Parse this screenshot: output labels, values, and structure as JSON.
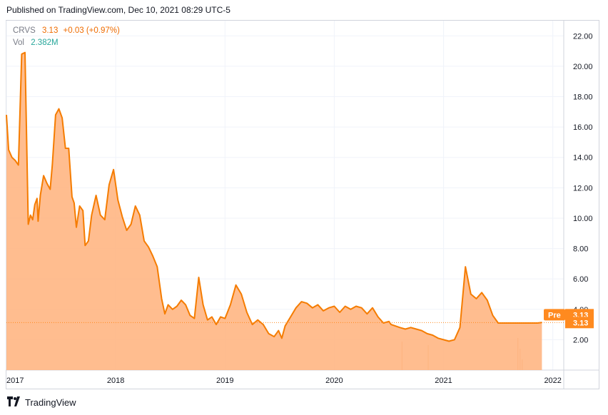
{
  "header": {
    "published": "Published on TradingView.com, Dec 10, 2021 08:29 UTC-5"
  },
  "legend": {
    "symbol": "CRVS",
    "price": "3.13",
    "change": "+0.03 (+0.97%)",
    "vol_label": "Vol",
    "vol_value": "2.382M"
  },
  "footer": {
    "brand": "TradingView"
  },
  "colors": {
    "line": "#f57c00",
    "fill": "#ffb683",
    "price_label": "#ff8a1f",
    "volume": "#f4a877",
    "grid": "#f0f3fa"
  },
  "badges": {
    "pre_label": "Pre",
    "pre_value": "3.13",
    "last_value": "3.13"
  },
  "chart_data": {
    "type": "area",
    "x_unit": "years",
    "ylim": [
      0,
      23
    ],
    "xlim": [
      2017,
      2022.1
    ],
    "y_ticks": [
      "2.00",
      "4.00",
      "6.00",
      "8.00",
      "10.00",
      "12.00",
      "14.00",
      "16.00",
      "18.00",
      "20.00",
      "22.00"
    ],
    "x_ticks": [
      "2017",
      "2018",
      "2019",
      "2020",
      "2021",
      "2022"
    ],
    "last_price": 3.13,
    "series": [
      {
        "x": [
          2017.0,
          2017.02,
          2017.05,
          2017.08,
          2017.11,
          2017.14,
          2017.17,
          2017.2,
          2017.22,
          2017.24,
          2017.26,
          2017.28,
          2017.29,
          2017.31,
          2017.34,
          2017.37,
          2017.4,
          2017.42,
          2017.45,
          2017.48,
          2017.51,
          2017.54,
          2017.57,
          2017.6,
          2017.62,
          2017.64,
          2017.67,
          2017.7,
          2017.72,
          2017.75,
          2017.78,
          2017.82,
          2017.86,
          2017.9,
          2017.94,
          2017.98,
          2018.02,
          2018.06,
          2018.1,
          2018.14,
          2018.18,
          2018.22,
          2018.26,
          2018.3,
          2018.34,
          2018.38,
          2018.42,
          2018.45,
          2018.48,
          2018.52,
          2018.56,
          2018.6,
          2018.64,
          2018.68,
          2018.72,
          2018.76,
          2018.8,
          2018.84,
          2018.88,
          2018.92,
          2018.96,
          2019.0,
          2019.05,
          2019.1,
          2019.15,
          2019.2,
          2019.25,
          2019.3,
          2019.35,
          2019.4,
          2019.45,
          2019.49,
          2019.52,
          2019.55,
          2019.6,
          2019.65,
          2019.7,
          2019.75,
          2019.8,
          2019.85,
          2019.9,
          2019.95,
          2020.0,
          2020.05,
          2020.1,
          2020.15,
          2020.2,
          2020.25,
          2020.3,
          2020.35,
          2020.4,
          2020.45,
          2020.5,
          2020.52,
          2020.56,
          2020.6,
          2020.65,
          2020.7,
          2020.75,
          2020.8,
          2020.85,
          2020.9,
          2020.95,
          2021.0,
          2021.05,
          2021.1,
          2021.15,
          2021.2,
          2021.25,
          2021.3,
          2021.35,
          2021.4,
          2021.45,
          2021.5,
          2021.55,
          2021.6,
          2021.63,
          2021.66,
          2021.68,
          2021.7,
          2021.73,
          2021.76,
          2021.8,
          2021.83,
          2021.86,
          2021.9
        ],
        "values": [
          16.8,
          14.5,
          14.0,
          13.8,
          13.5,
          20.8,
          20.9,
          9.6,
          10.2,
          9.9,
          10.9,
          11.3,
          9.8,
          11.5,
          12.8,
          12.3,
          11.9,
          13.5,
          16.8,
          17.2,
          16.6,
          14.6,
          14.6,
          11.4,
          11.0,
          9.4,
          10.8,
          10.5,
          8.2,
          8.5,
          10.2,
          11.5,
          10.2,
          9.9,
          12.2,
          13.2,
          11.2,
          10.1,
          9.2,
          9.6,
          10.8,
          10.2,
          8.5,
          8.1,
          7.5,
          6.8,
          4.7,
          3.7,
          4.3,
          4.0,
          4.2,
          4.6,
          4.3,
          3.6,
          3.4,
          6.1,
          4.3,
          3.3,
          3.5,
          3.0,
          3.5,
          3.4,
          4.3,
          5.6,
          5.0,
          3.8,
          3.0,
          3.3,
          3.0,
          2.4,
          2.2,
          2.6,
          2.1,
          2.9,
          3.5,
          4.1,
          4.5,
          4.4,
          4.1,
          4.3,
          3.9,
          4.1,
          4.2,
          3.8,
          4.2,
          4.0,
          4.2,
          4.1,
          3.7,
          4.1,
          3.5,
          3.1,
          3.2,
          3.0,
          2.9,
          2.8,
          2.7,
          2.8,
          2.7,
          2.6,
          2.4,
          2.3,
          2.1,
          2.0,
          1.9,
          2.0,
          2.8,
          6.8,
          5.0,
          4.7,
          5.1,
          4.6,
          3.6,
          3.1,
          3.1,
          3.1,
          3.1,
          3.1,
          3.1,
          3.1,
          3.1,
          3.1,
          3.1,
          3.1,
          3.1,
          3.13
        ]
      }
    ],
    "volume": {
      "x": [
        2020.62,
        2020.86,
        2021.68,
        2021.7,
        2021.72
      ],
      "values": [
        8,
        7,
        9,
        6,
        3
      ]
    }
  }
}
